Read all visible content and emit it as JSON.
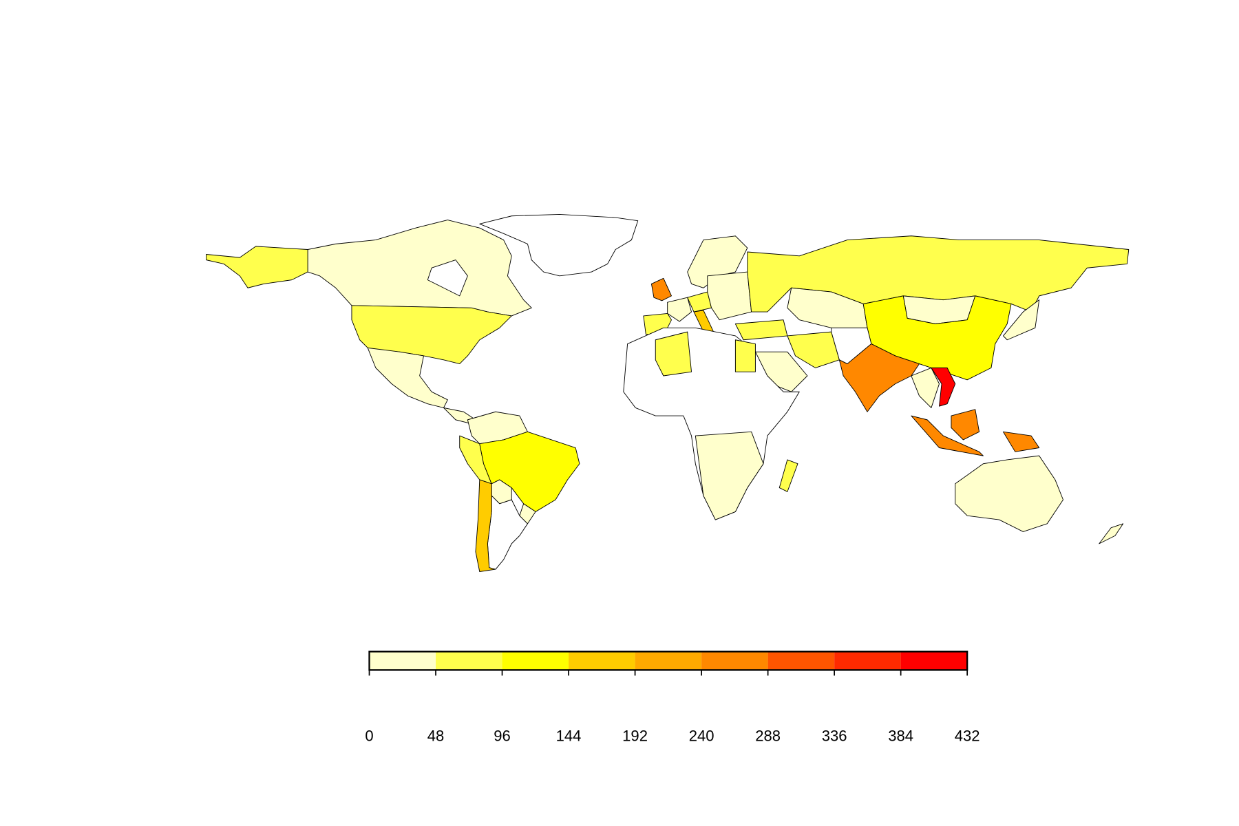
{
  "chart_data": {
    "type": "map",
    "xlim": [
      0,
      432
    ],
    "xticks": [
      0,
      48,
      96,
      144,
      192,
      240,
      288,
      336,
      384,
      432
    ],
    "colors": [
      "#FFFFCC",
      "#FFFF4D",
      "#FFFF00",
      "#FFCC00",
      "#FFAA00",
      "#FF8800",
      "#FF5500",
      "#FF2A00",
      "#FF0000"
    ]
  }
}
